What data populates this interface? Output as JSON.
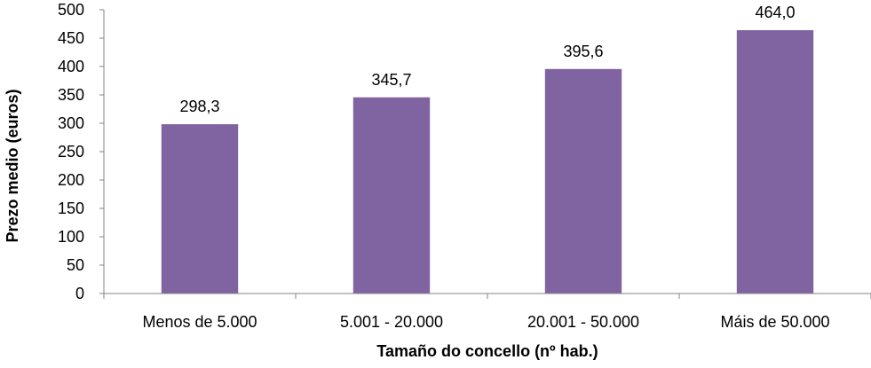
{
  "chart_data": {
    "type": "bar",
    "categories": [
      "Menos de 5.000",
      "5.001 - 20.000",
      "20.001 - 50.000",
      "Máis de 50.000"
    ],
    "values": [
      298.3,
      345.7,
      395.6,
      464.0
    ],
    "data_labels": [
      "298,3",
      "345,7",
      "395,6",
      "464,0"
    ],
    "title": "",
    "xlabel": "Tamaño do concello (nº hab.)",
    "ylabel": "Prezo medio (euros)",
    "ylim": [
      0,
      500
    ],
    "yticks": [
      0,
      50,
      100,
      150,
      200,
      250,
      300,
      350,
      400,
      450,
      500
    ],
    "grid": false,
    "legend": "none",
    "bar_color": "#8064a2",
    "axis_color": "#868686"
  }
}
